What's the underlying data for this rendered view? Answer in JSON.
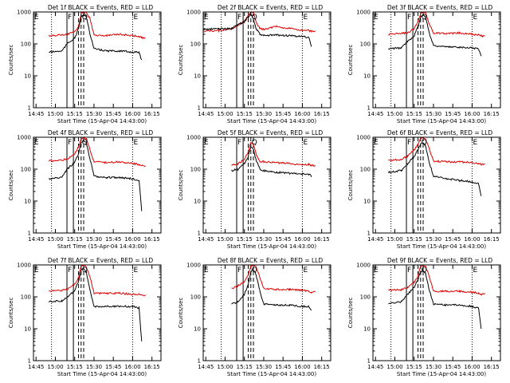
{
  "figure": {
    "xlabel": "Start Time (15-Apr-04 14:43:00)",
    "ylabel": "Counts/sec",
    "x_ticks": [
      "14:45",
      "15:00",
      "15:15",
      "15:30",
      "15:45",
      "16:00",
      "16:15"
    ],
    "y_ticks": [
      "1",
      "10",
      "100",
      "1000"
    ],
    "panel_titles": [
      "Det 1f BLACK = Events, RED = LLD",
      "Det 2f BLACK = Events, RED = LLD",
      "Det 3f BLACK = Events, RED = LLD",
      "Det 4f BLACK = Events, RED = LLD",
      "Det 5f BLACK = Events, RED = LLD",
      "Det 6f BLACK = Events, RED = LLD",
      "Det 7f BLACK = Events, RED = LLD",
      "Det 8f BLACK = Events, RED = LLD",
      "Det 9f BLACK = Events, RED = LLD"
    ],
    "markers": [
      "E",
      "F",
      "Q",
      "E"
    ]
  },
  "colors": {
    "events": "#000000",
    "lld": "#e00000",
    "axis": "#000000"
  },
  "chart_data": [
    {
      "type": "line",
      "title": "Det 1f BLACK = Events, RED = LLD",
      "xlabel": "Start Time (15-Apr-04 14:43:00)",
      "ylabel": "Counts/sec",
      "yscale": "log",
      "ylim": [
        1,
        1000
      ],
      "xlim": [
        "14:43",
        "16:22"
      ],
      "x": [
        "14:43",
        "14:55",
        "15:05",
        "15:10",
        "15:15",
        "15:18",
        "15:20",
        "15:22",
        "15:24",
        "15:27",
        "15:30",
        "15:40",
        "15:50",
        "16:00",
        "16:05",
        "16:07",
        "16:10"
      ],
      "series": [
        {
          "name": "LLD",
          "values": [
            null,
            180,
            190,
            200,
            240,
            350,
            900,
            1000,
            950,
            600,
            190,
            180,
            200,
            180,
            170,
            160,
            150
          ]
        },
        {
          "name": "Events",
          "values": [
            null,
            55,
            60,
            110,
            150,
            300,
            700,
            800,
            700,
            200,
            70,
            60,
            60,
            55,
            55,
            30,
            null
          ]
        }
      ],
      "vertical_lines": {
        "dotted": [
          "14:57",
          "16:00"
        ],
        "solid": [
          "15:09",
          "15:14"
        ],
        "dashed": [
          "15:18",
          "15:20",
          "15:22"
        ]
      }
    },
    {
      "type": "line",
      "title": "Det 2f BLACK = Events, RED = LLD",
      "xlabel": "Start Time (15-Apr-04 14:43:00)",
      "ylabel": "Counts/sec",
      "yscale": "log",
      "ylim": [
        1,
        1000
      ],
      "xlim": [
        "14:43",
        "16:22"
      ],
      "x": [
        "14:43",
        "14:55",
        "15:05",
        "15:10",
        "15:15",
        "15:18",
        "15:20",
        "15:22",
        "15:24",
        "15:27",
        "15:30",
        "15:40",
        "15:50",
        "16:00",
        "16:05",
        "16:07",
        "16:10"
      ],
      "series": [
        {
          "name": "LLD",
          "values": [
            250,
            260,
            300,
            380,
            500,
            800,
            1000,
            900,
            500,
            300,
            290,
            350,
            300,
            270,
            260,
            250,
            250
          ]
        },
        {
          "name": "Events",
          "values": [
            280,
            300,
            300,
            400,
            500,
            700,
            900,
            600,
            300,
            200,
            180,
            190,
            180,
            170,
            160,
            80,
            null
          ]
        }
      ],
      "vertical_lines": {
        "dotted": [
          "14:57",
          "16:00"
        ],
        "solid": [
          "15:09",
          "15:14"
        ],
        "dashed": [
          "15:18",
          "15:20",
          "15:22"
        ]
      }
    },
    {
      "type": "line",
      "title": "Det 3f BLACK = Events, RED = LLD",
      "xlabel": "Start Time (15-Apr-04 14:43:00)",
      "ylabel": "Counts/sec",
      "yscale": "log",
      "ylim": [
        1,
        1000
      ],
      "xlim": [
        "14:43",
        "16:22"
      ],
      "x": [
        "14:43",
        "14:55",
        "15:05",
        "15:10",
        "15:15",
        "15:18",
        "15:20",
        "15:22",
        "15:24",
        "15:27",
        "15:30",
        "15:40",
        "15:50",
        "16:00",
        "16:05",
        "16:07",
        "16:10"
      ],
      "series": [
        {
          "name": "LLD",
          "values": [
            null,
            200,
            210,
            220,
            300,
            500,
            900,
            1000,
            900,
            400,
            220,
            210,
            220,
            200,
            190,
            180,
            170
          ]
        },
        {
          "name": "Events",
          "values": [
            null,
            70,
            75,
            120,
            180,
            350,
            700,
            800,
            700,
            200,
            90,
            80,
            80,
            75,
            70,
            40,
            null
          ]
        }
      ],
      "vertical_lines": {
        "dotted": [
          "14:57",
          "16:00"
        ],
        "solid": [
          "15:09",
          "15:14"
        ],
        "dashed": [
          "15:18",
          "15:20",
          "15:22"
        ]
      }
    },
    {
      "type": "line",
      "title": "Det 4f BLACK = Events, RED = LLD",
      "xlabel": "Start Time (15-Apr-04 14:43:00)",
      "ylabel": "Counts/sec",
      "yscale": "log",
      "ylim": [
        1,
        1000
      ],
      "xlim": [
        "14:43",
        "16:22"
      ],
      "x": [
        "14:43",
        "14:55",
        "15:05",
        "15:10",
        "15:15",
        "15:18",
        "15:20",
        "15:22",
        "15:24",
        "15:27",
        "15:30",
        "15:40",
        "15:50",
        "16:00",
        "16:05",
        "16:07",
        "16:10"
      ],
      "series": [
        {
          "name": "LLD",
          "values": [
            null,
            180,
            190,
            220,
            300,
            500,
            900,
            1000,
            900,
            400,
            170,
            160,
            170,
            150,
            140,
            130,
            120
          ]
        },
        {
          "name": "Events",
          "values": [
            null,
            50,
            55,
            110,
            160,
            300,
            700,
            800,
            700,
            200,
            60,
            55,
            55,
            50,
            45,
            5,
            null
          ]
        }
      ],
      "vertical_lines": {
        "dotted": [
          "14:57",
          "16:00"
        ],
        "solid": [
          "15:09",
          "15:14"
        ],
        "dashed": [
          "15:18",
          "15:20",
          "15:22"
        ]
      }
    },
    {
      "type": "line",
      "title": "Det 5f BLACK = Events, RED = LLD",
      "xlabel": "Start Time (15-Apr-04 14:43:00)",
      "ylabel": "Counts/sec",
      "yscale": "log",
      "ylim": [
        1,
        1000
      ],
      "xlim": [
        "14:43",
        "16:22"
      ],
      "x": [
        "14:43",
        "14:55",
        "15:05",
        "15:10",
        "15:15",
        "15:18",
        "15:20",
        "15:22",
        "15:24",
        "15:27",
        "15:30",
        "15:40",
        "15:50",
        "16:00",
        "16:05",
        "16:07",
        "16:10"
      ],
      "series": [
        {
          "name": "LLD",
          "values": [
            null,
            null,
            130,
            150,
            200,
            350,
            700,
            600,
            300,
            180,
            170,
            160,
            150,
            140,
            140,
            130,
            130
          ]
        },
        {
          "name": "Events",
          "values": [
            null,
            null,
            90,
            100,
            150,
            250,
            500,
            400,
            200,
            100,
            90,
            80,
            75,
            70,
            70,
            60,
            null
          ]
        }
      ],
      "vertical_lines": {
        "dotted": [
          "14:57",
          "16:00"
        ],
        "solid": [
          "15:09",
          "15:14"
        ],
        "dashed": [
          "15:18",
          "15:20",
          "15:22"
        ]
      }
    },
    {
      "type": "line",
      "title": "Det 6f BLACK = Events, RED = LLD",
      "xlabel": "Start Time (15-Apr-04 14:43:00)",
      "ylabel": "Counts/sec",
      "yscale": "log",
      "ylim": [
        1,
        1000
      ],
      "xlim": [
        "14:43",
        "16:22"
      ],
      "x": [
        "14:43",
        "14:55",
        "15:05",
        "15:10",
        "15:15",
        "15:18",
        "15:20",
        "15:22",
        "15:24",
        "15:27",
        "15:30",
        "15:40",
        "15:50",
        "16:00",
        "16:05",
        "16:07",
        "16:10"
      ],
      "series": [
        {
          "name": "LLD",
          "values": [
            null,
            190,
            200,
            260,
            400,
            600,
            900,
            1000,
            900,
            400,
            180,
            170,
            170,
            160,
            150,
            140,
            140
          ]
        },
        {
          "name": "Events",
          "values": [
            null,
            80,
            90,
            150,
            250,
            400,
            600,
            700,
            500,
            150,
            60,
            50,
            45,
            40,
            35,
            15,
            null
          ]
        }
      ],
      "vertical_lines": {
        "dotted": [
          "14:57",
          "16:00"
        ],
        "solid": [
          "15:09",
          "15:14"
        ],
        "dashed": [
          "15:18",
          "15:20",
          "15:22"
        ]
      }
    },
    {
      "type": "line",
      "title": "Det 7f BLACK = Events, RED = LLD",
      "xlabel": "Start Time (15-Apr-04 14:43:00)",
      "ylabel": "Counts/sec",
      "yscale": "log",
      "ylim": [
        1,
        1000
      ],
      "xlim": [
        "14:43",
        "16:22"
      ],
      "x": [
        "14:43",
        "14:55",
        "15:05",
        "15:10",
        "15:15",
        "15:18",
        "15:20",
        "15:22",
        "15:24",
        "15:27",
        "15:30",
        "15:40",
        "15:50",
        "16:00",
        "16:05",
        "16:07",
        "16:10"
      ],
      "series": [
        {
          "name": "LLD",
          "values": [
            null,
            150,
            160,
            180,
            250,
            400,
            900,
            1000,
            900,
            400,
            130,
            130,
            130,
            120,
            120,
            110,
            110
          ]
        },
        {
          "name": "Events",
          "values": [
            null,
            70,
            75,
            100,
            160,
            300,
            700,
            800,
            600,
            150,
            50,
            50,
            50,
            50,
            45,
            4,
            null
          ]
        }
      ],
      "vertical_lines": {
        "dotted": [
          "14:57",
          "16:00"
        ],
        "solid": [
          "15:09",
          "15:14"
        ],
        "dashed": [
          "15:18",
          "15:20",
          "15:22"
        ]
      }
    },
    {
      "type": "line",
      "title": "Det 8f BLACK = Events, RED = LLD",
      "xlabel": "Start Time (15-Apr-04 14:43:00)",
      "ylabel": "Counts/sec",
      "yscale": "log",
      "ylim": [
        1,
        1000
      ],
      "xlim": [
        "14:43",
        "16:22"
      ],
      "x": [
        "14:43",
        "14:55",
        "15:05",
        "15:10",
        "15:15",
        "15:18",
        "15:20",
        "15:22",
        "15:24",
        "15:27",
        "15:30",
        "15:40",
        "15:50",
        "16:00",
        "16:05",
        "16:07",
        "16:10"
      ],
      "series": [
        {
          "name": "LLD",
          "values": [
            null,
            null,
            180,
            220,
            300,
            500,
            900,
            1000,
            900,
            400,
            180,
            170,
            170,
            160,
            150,
            140,
            140
          ]
        },
        {
          "name": "Events",
          "values": [
            null,
            null,
            60,
            70,
            120,
            250,
            600,
            700,
            500,
            150,
            60,
            55,
            55,
            50,
            50,
            40,
            null
          ]
        }
      ],
      "vertical_lines": {
        "dotted": [
          "14:57",
          "16:00"
        ],
        "solid": [
          "15:09",
          "15:14"
        ],
        "dashed": [
          "15:18",
          "15:20",
          "15:22"
        ]
      }
    },
    {
      "type": "line",
      "title": "Det 9f BLACK = Events, RED = LLD",
      "xlabel": "Start Time (15-Apr-04 14:43:00)",
      "ylabel": "Counts/sec",
      "yscale": "log",
      "ylim": [
        1,
        1000
      ],
      "xlim": [
        "14:43",
        "16:22"
      ],
      "x": [
        "14:43",
        "14:55",
        "15:05",
        "15:10",
        "15:15",
        "15:18",
        "15:20",
        "15:22",
        "15:24",
        "15:27",
        "15:30",
        "15:40",
        "15:50",
        "16:00",
        "16:05",
        "16:07",
        "16:10"
      ],
      "series": [
        {
          "name": "LLD",
          "values": [
            null,
            160,
            170,
            200,
            280,
            450,
            900,
            1000,
            900,
            400,
            150,
            150,
            150,
            140,
            130,
            120,
            120
          ]
        },
        {
          "name": "Events",
          "values": [
            null,
            60,
            70,
            120,
            200,
            350,
            600,
            700,
            500,
            150,
            60,
            55,
            55,
            50,
            45,
            10,
            null
          ]
        }
      ],
      "vertical_lines": {
        "dotted": [
          "14:57",
          "16:00"
        ],
        "solid": [
          "15:09",
          "15:14"
        ],
        "dashed": [
          "15:18",
          "15:20",
          "15:22"
        ]
      }
    }
  ]
}
